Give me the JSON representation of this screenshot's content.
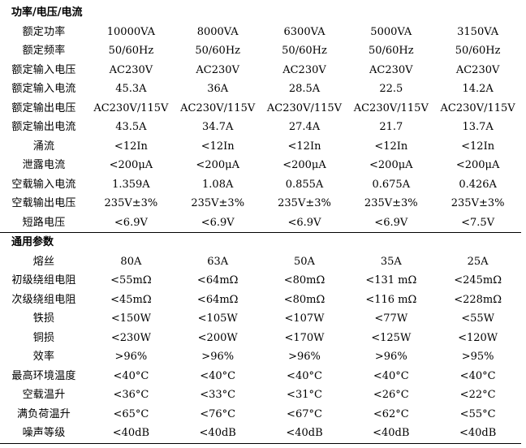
{
  "sections": [
    {
      "title": "功率/电压/电流",
      "rows": [
        {
          "label": "额定功率",
          "values": [
            "10000VA",
            "8000VA",
            "6300VA",
            "5000VA",
            "3150VA"
          ]
        },
        {
          "label": "额定频率",
          "values": [
            "50/60Hz",
            "50/60Hz",
            "50/60Hz",
            "50/60Hz",
            "50/60Hz"
          ]
        },
        {
          "label": "额定输入电压",
          "values": [
            "AC230V",
            "AC230V",
            "AC230V",
            "AC230V",
            "AC230V"
          ]
        },
        {
          "label": "额定输入电流",
          "values": [
            "45.3A",
            "36A",
            "28.5A",
            "22.5",
            "14.2A"
          ]
        },
        {
          "label": "额定输出电压",
          "values": [
            "AC230V/115V",
            "AC230V/115V",
            "AC230V/115V",
            "AC230V/115V",
            "AC230V/115V"
          ]
        },
        {
          "label": "额定输出电流",
          "values": [
            "43.5A",
            "34.7A",
            "27.4A",
            "21.7",
            "13.7A"
          ]
        },
        {
          "label": "涌流",
          "values": [
            "<12In",
            "<12In",
            "<12In",
            "<12In",
            "<12In"
          ]
        },
        {
          "label": "泄露电流",
          "values": [
            "<200μA",
            "<200μA",
            "<200μA",
            "<200μA",
            "<200μA"
          ]
        },
        {
          "label": "空载输入电流",
          "values": [
            "1.359A",
            "1.08A",
            "0.855A",
            "0.675A",
            "0.426A"
          ]
        },
        {
          "label": "空载输出电压",
          "values": [
            "235V±3%",
            "235V±3%",
            "235V±3%",
            "235V±3%",
            "235V±3%"
          ]
        },
        {
          "label": "短路电压",
          "values": [
            "<6.9V",
            "<6.9V",
            "<6.9V",
            "<6.9V",
            "<7.5V"
          ]
        }
      ]
    },
    {
      "title": "通用参数",
      "rows": [
        {
          "label": "熔丝",
          "values": [
            "80A",
            "63A",
            "50A",
            "35A",
            "25A"
          ]
        },
        {
          "label": "初级绕组电阻",
          "values": [
            "<55mΩ",
            "<64mΩ",
            "<80mΩ",
            "<131 mΩ",
            "<245mΩ"
          ]
        },
        {
          "label": "次级绕组电阻",
          "values": [
            "<45mΩ",
            "<64mΩ",
            "<80mΩ",
            "<116 mΩ",
            "<228mΩ"
          ]
        },
        {
          "label": "铁损",
          "values": [
            "<150W",
            "<105W",
            "<107W",
            "<77W",
            "<55W"
          ]
        },
        {
          "label": "铜损",
          "values": [
            "<230W",
            "<200W",
            "<170W",
            "<125W",
            "<120W"
          ]
        },
        {
          "label": "效率",
          "values": [
            ">96%",
            ">96%",
            ">96%",
            ">96%",
            ">95%"
          ]
        },
        {
          "label": "最高环境温度",
          "values": [
            "<40°C",
            "<40°C",
            "<40°C",
            "<40°C",
            "<40°C"
          ]
        },
        {
          "label": "空载温升",
          "values": [
            "<36°C",
            "<33°C",
            "<31°C",
            "<26°C",
            "<22°C"
          ]
        },
        {
          "label": "满负荷温升",
          "values": [
            "<65°C",
            "<76°C",
            "<67°C",
            "<62°C",
            "<55°C"
          ]
        },
        {
          "label": "噪声等级",
          "values": [
            "<40dB",
            "<40dB",
            "<40dB",
            "<40dB",
            "<40dB"
          ]
        }
      ]
    }
  ]
}
